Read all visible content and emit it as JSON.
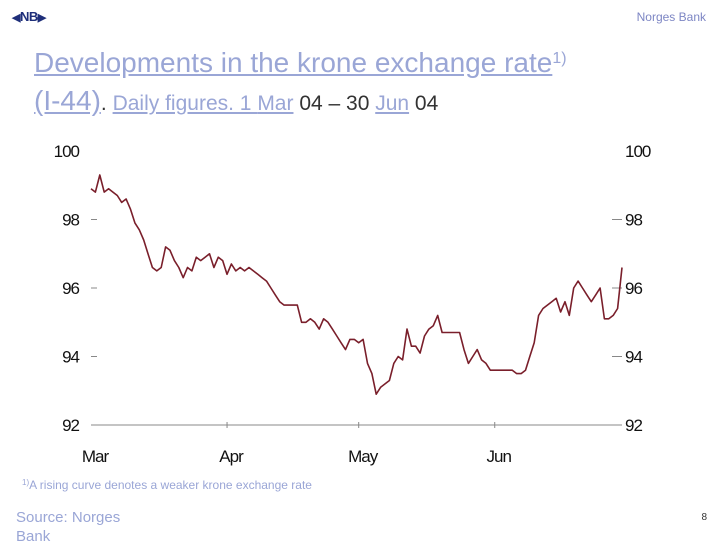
{
  "header": {
    "logo_text": "NB",
    "bank_name": "Norges Bank"
  },
  "title": {
    "main": "Developments in the krone exchange rate",
    "superscript": "1)",
    "code": "(I-44)",
    "period_sep": ". ",
    "subtitle_prefix": "Daily figures. 1 ",
    "sub_mar": "Mar",
    "sub_04a": " 04 – 30 ",
    "sub_jun": "Jun",
    "sub_04b": " 04"
  },
  "footnote": {
    "marker": "1)",
    "text": "A rising curve denotes a weaker krone exchange rate"
  },
  "source": "Source: Norges Bank",
  "page_number": "8",
  "colors": {
    "line": "#7a1f2b",
    "title": "#9aa6d6",
    "logo": "#1f2f7a"
  },
  "chart_data": {
    "type": "line",
    "title": "",
    "xlabel": "",
    "ylabel": "",
    "ylim": [
      92,
      100
    ],
    "yticks": [
      92,
      94,
      96,
      98,
      100
    ],
    "ytick_labels_left": [
      "92",
      "94",
      "96",
      "98",
      "100"
    ],
    "ytick_labels_right": [
      "92",
      "94",
      "96",
      "98",
      "100"
    ],
    "xtick_labels": [
      "Mar",
      "Apr",
      "May",
      "Jun"
    ],
    "xtick_days": [
      1,
      32,
      62,
      93
    ],
    "xlim_days": [
      1,
      122
    ],
    "grid": false,
    "series": [
      {
        "x_days": [
          1,
          2,
          3,
          4,
          5,
          6,
          7,
          8,
          9,
          10,
          11,
          12,
          13,
          14,
          15,
          16,
          17,
          18,
          19,
          20,
          21,
          22,
          23,
          24,
          25,
          26,
          27,
          28,
          29,
          30,
          31,
          32,
          33,
          34,
          35,
          36,
          37,
          38,
          39,
          40,
          41,
          42,
          43,
          44,
          45,
          46,
          47,
          48,
          49,
          50,
          51,
          52,
          53,
          54,
          55,
          56,
          57,
          58,
          59,
          60,
          61,
          62,
          63,
          64,
          65,
          66,
          67,
          68,
          69,
          70,
          71,
          72,
          73,
          74,
          75,
          76,
          77,
          78,
          79,
          80,
          81,
          82,
          83,
          84,
          85,
          86,
          87,
          88,
          89,
          90,
          91,
          92,
          93,
          94,
          95,
          96,
          97,
          98,
          99,
          100,
          101,
          102,
          103,
          104,
          105,
          106,
          107,
          108,
          109,
          110,
          111,
          112,
          113,
          114,
          115,
          116,
          117,
          118,
          119,
          120,
          121,
          122
        ],
        "values": [
          98.9,
          98.8,
          99.3,
          98.8,
          98.9,
          98.8,
          98.7,
          98.5,
          98.6,
          98.3,
          97.9,
          97.7,
          97.4,
          97.0,
          96.6,
          96.5,
          96.6,
          97.2,
          97.1,
          96.8,
          96.6,
          96.3,
          96.6,
          96.5,
          96.9,
          96.8,
          96.9,
          97.0,
          96.6,
          96.9,
          96.8,
          96.4,
          96.7,
          96.5,
          96.6,
          96.5,
          96.6,
          96.5,
          96.4,
          96.3,
          96.2,
          96.0,
          95.8,
          95.6,
          95.5,
          95.5,
          95.5,
          95.5,
          95.0,
          95.0,
          95.1,
          95.0,
          94.8,
          95.1,
          95.0,
          94.8,
          94.6,
          94.4,
          94.2,
          94.5,
          94.5,
          94.4,
          94.5,
          93.8,
          93.5,
          92.9,
          93.1,
          93.2,
          93.3,
          93.8,
          94.0,
          93.9,
          94.8,
          94.3,
          94.3,
          94.1,
          94.6,
          94.8,
          94.9,
          95.2,
          94.7,
          94.7,
          94.7,
          94.7,
          94.7,
          94.2,
          93.8,
          94.0,
          94.2,
          93.9,
          93.8,
          93.6,
          93.6,
          93.6,
          93.6,
          93.6,
          93.6,
          93.5,
          93.5,
          93.6,
          94.0,
          94.4,
          95.2,
          95.4,
          95.5,
          95.6,
          95.7,
          95.3,
          95.6,
          95.2,
          96.0,
          96.2,
          96.0,
          95.8,
          95.6,
          95.8,
          96.0,
          95.1,
          95.1,
          95.2,
          95.4,
          96.6
        ]
      }
    ]
  }
}
